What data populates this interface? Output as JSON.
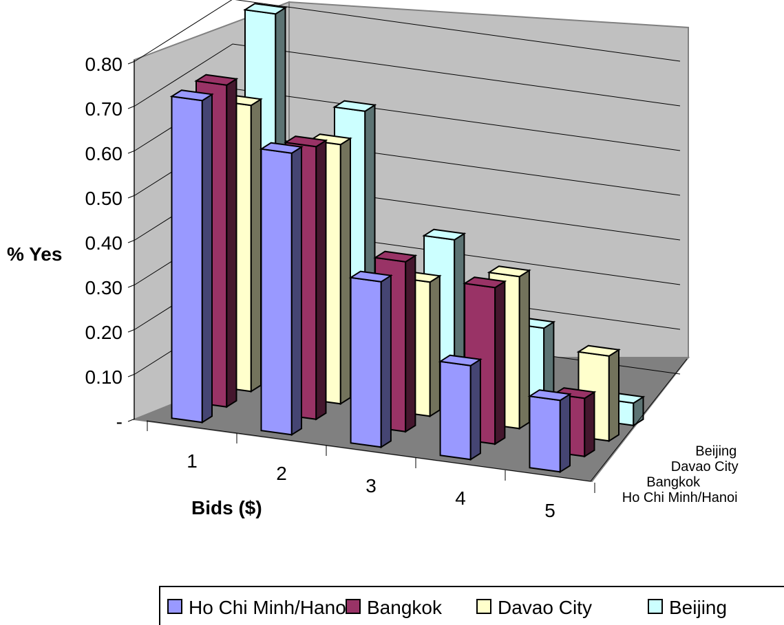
{
  "chart_data": {
    "type": "bar",
    "variant": "3d-column",
    "ylabel": "% Yes",
    "xlabel": "Bids ($)",
    "ylim": [
      0,
      0.8
    ],
    "yticks": [
      "-",
      "0.10",
      "0.20",
      "0.30",
      "0.40",
      "0.50",
      "0.60",
      "0.70",
      "0.80"
    ],
    "categories": [
      "1",
      "2",
      "3",
      "4",
      "5"
    ],
    "series": [
      {
        "name": "Ho Chi Minh/Hanoi",
        "legend_label": "Ho Chi Minh/Hanoi",
        "color": "#9999ff",
        "values": [
          0.72,
          0.63,
          0.37,
          0.21,
          0.16
        ]
      },
      {
        "name": "Bangkok",
        "legend_label": "Bangkok",
        "color": "#993366",
        "values": [
          0.72,
          0.61,
          0.38,
          0.35,
          0.13
        ]
      },
      {
        "name": "Davao City",
        "legend_label": "Davao City",
        "color": "#ffffcc",
        "values": [
          0.64,
          0.58,
          0.3,
          0.34,
          0.19
        ]
      },
      {
        "name": "Beijing",
        "legend_label": "Beijing",
        "color": "#ccffff",
        "values": [
          0.81,
          0.62,
          0.36,
          0.19,
          0.05
        ]
      }
    ],
    "grid": true,
    "legend_position": "bottom",
    "colors": {
      "walls": "#c0c0c0",
      "floor": "#808080",
      "gridlines": "#000000"
    }
  }
}
